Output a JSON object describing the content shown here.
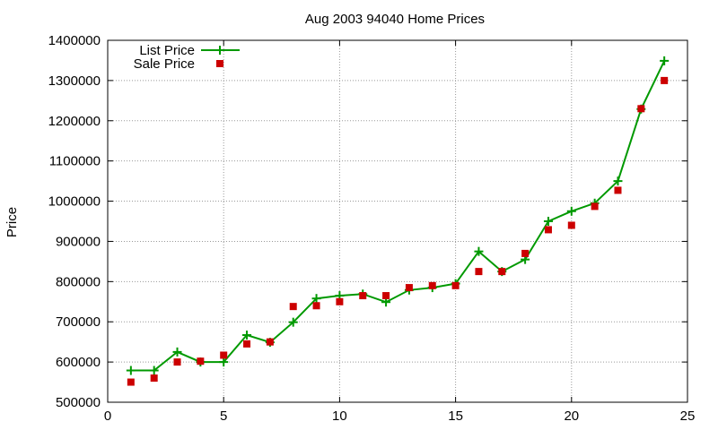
{
  "chart_data": {
    "type": "line",
    "title": "Aug 2003 94040 Home Prices",
    "xlabel": "",
    "ylabel": "Price",
    "xlim": [
      0,
      25
    ],
    "ylim": [
      500000,
      1400000
    ],
    "xticks": [
      0,
      5,
      10,
      15,
      20,
      25
    ],
    "yticks": [
      500000,
      600000,
      700000,
      800000,
      900000,
      1000000,
      1100000,
      1200000,
      1300000,
      1400000
    ],
    "grid": true,
    "legend_position": "top-left",
    "series": [
      {
        "name": "List Price",
        "style": "line-with-plus-markers",
        "color": "#009900",
        "x": [
          1,
          2,
          3,
          4,
          5,
          6,
          7,
          8,
          9,
          10,
          11,
          12,
          13,
          14,
          15,
          16,
          17,
          18,
          19,
          20,
          21,
          22,
          23,
          24
        ],
        "values": [
          579000,
          579000,
          625000,
          600000,
          600000,
          667000,
          649000,
          699000,
          758000,
          765000,
          769000,
          749000,
          779000,
          785000,
          795000,
          875000,
          825000,
          855000,
          950000,
          975000,
          995000,
          1050000,
          1229000,
          1349000
        ]
      },
      {
        "name": "Sale Price",
        "style": "square-markers",
        "color": "#cc0000",
        "x": [
          1,
          2,
          3,
          4,
          5,
          6,
          7,
          8,
          9,
          10,
          11,
          12,
          13,
          14,
          15,
          16,
          17,
          18,
          19,
          20,
          21,
          22,
          23,
          24
        ],
        "values": [
          550000,
          560000,
          600000,
          602000,
          617000,
          645000,
          650000,
          738000,
          740000,
          750000,
          765000,
          765000,
          785000,
          790000,
          790000,
          825000,
          825000,
          870000,
          929000,
          940000,
          987000,
          1027000,
          1230000,
          1300000
        ]
      }
    ]
  }
}
